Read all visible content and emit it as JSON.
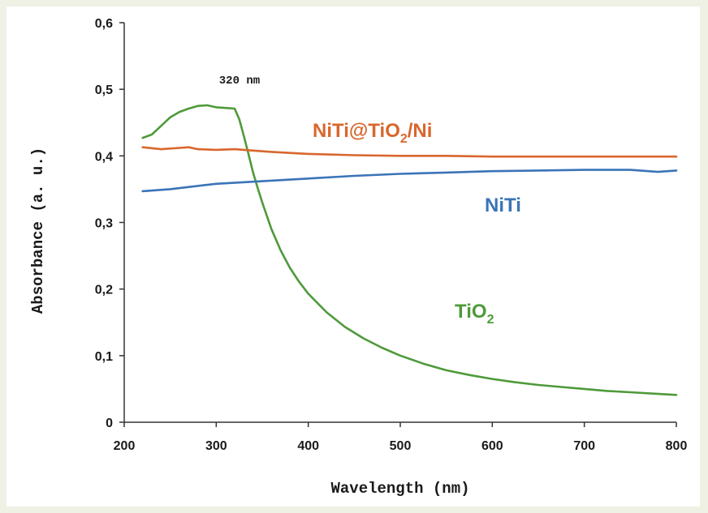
{
  "chart_data": {
    "type": "line",
    "xlabel": "Wavelength (nm)",
    "ylabel": "Absorbance (a. u.)",
    "xlim": [
      200,
      800
    ],
    "ylim": [
      0,
      0.6
    ],
    "x_ticks": [
      "200",
      "300",
      "400",
      "500",
      "600",
      "700",
      "800"
    ],
    "y_ticks": [
      "0",
      "0,1",
      "0,2",
      "0,3",
      "0,4",
      "0,5",
      "0,6"
    ],
    "grid": false,
    "legend": "none",
    "annotations": [
      "320 nm"
    ],
    "series": [
      {
        "name": "TiO2",
        "label_main": "TiO",
        "label_sub": "2",
        "color": "#4e9a3a",
        "x": [
          220,
          230,
          240,
          250,
          260,
          270,
          280,
          290,
          300,
          310,
          320,
          325,
          330,
          335,
          340,
          345,
          350,
          360,
          370,
          380,
          390,
          400,
          420,
          440,
          460,
          480,
          500,
          525,
          550,
          575,
          600,
          625,
          650,
          675,
          700,
          725,
          750,
          775,
          800
        ],
        "y": [
          0.427,
          0.432,
          0.445,
          0.458,
          0.466,
          0.471,
          0.475,
          0.476,
          0.473,
          0.472,
          0.471,
          0.455,
          0.43,
          0.403,
          0.375,
          0.352,
          0.33,
          0.29,
          0.258,
          0.232,
          0.211,
          0.193,
          0.165,
          0.143,
          0.126,
          0.112,
          0.1,
          0.088,
          0.078,
          0.071,
          0.065,
          0.06,
          0.056,
          0.053,
          0.05,
          0.047,
          0.045,
          0.043,
          0.041
        ]
      },
      {
        "name": "NiTi@TiO2/Ni",
        "label_main": "NiTi@TiO",
        "label_sub": "2",
        "label_tail": "/Ni",
        "color": "#d9662d",
        "x": [
          220,
          240,
          260,
          270,
          280,
          300,
          320,
          340,
          360,
          400,
          450,
          500,
          550,
          600,
          650,
          700,
          750,
          800
        ],
        "y": [
          0.413,
          0.41,
          0.412,
          0.413,
          0.41,
          0.409,
          0.41,
          0.408,
          0.406,
          0.403,
          0.401,
          0.4,
          0.4,
          0.399,
          0.399,
          0.399,
          0.399,
          0.399
        ]
      },
      {
        "name": "NiTi",
        "label_main": "NiTi",
        "color": "#3a74b8",
        "x": [
          220,
          250,
          300,
          350,
          400,
          450,
          500,
          550,
          600,
          650,
          700,
          750,
          780,
          800
        ],
        "y": [
          0.347,
          0.35,
          0.358,
          0.362,
          0.366,
          0.37,
          0.373,
          0.375,
          0.377,
          0.378,
          0.379,
          0.379,
          0.376,
          0.378
        ]
      }
    ]
  }
}
